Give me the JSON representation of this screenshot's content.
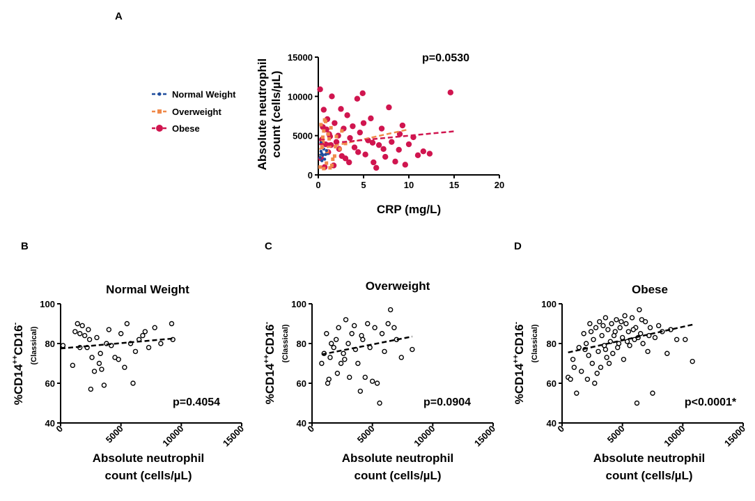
{
  "panels": {
    "A": {
      "label": "A",
      "chart_data": {
        "type": "scatter",
        "title": "",
        "xlabel": "CRP (mg/L)",
        "ylabel_line1": "Absolute neutrophil",
        "ylabel_line2": "count (cells/µL)",
        "xlim": [
          0,
          20
        ],
        "ylim": [
          0,
          15000
        ],
        "xticks": [
          "0",
          "5",
          "10",
          "15",
          "20"
        ],
        "yticks": [
          "0",
          "5000",
          "10000",
          "15000"
        ],
        "annotation": "p=0.0530",
        "series": [
          {
            "name": "Normal Weight",
            "color": "#1f4e9e",
            "marker": "circle-small",
            "points": [
              [
                0.2,
                2200
              ],
              [
                0.3,
                3000
              ],
              [
                0.5,
                2500
              ],
              [
                0.4,
                1800
              ],
              [
                0.6,
                3300
              ],
              [
                0.8,
                2600
              ],
              [
                0.3,
                4100
              ],
              [
                0.7,
                2000
              ],
              [
                0.9,
                3100
              ],
              [
                0.4,
                2700
              ]
            ],
            "fit": [
              [
                0.1,
                2550
              ],
              [
                1.2,
                2650
              ]
            ]
          },
          {
            "name": "Overweight",
            "color": "#f08a4b",
            "marker": "square",
            "points": [
              [
                0.2,
                1000
              ],
              [
                0.3,
                2500
              ],
              [
                0.5,
                4200
              ],
              [
                0.6,
                5600
              ],
              [
                0.8,
                6800
              ],
              [
                1.0,
                3000
              ],
              [
                1.2,
                4600
              ],
              [
                1.4,
                6000
              ],
              [
                1.6,
                2000
              ],
              [
                0.4,
                3600
              ],
              [
                0.9,
                1500
              ],
              [
                1.1,
                5200
              ],
              [
                0.7,
                7000
              ],
              [
                2.0,
                4900
              ],
              [
                2.4,
                3300
              ],
              [
                3.0,
                4000
              ],
              [
                0.3,
                6400
              ],
              [
                1.8,
                2400
              ],
              [
                0.6,
                800
              ],
              [
                1.3,
                900
              ],
              [
                2.6,
                5600
              ],
              [
                0.5,
                4800
              ],
              [
                1.9,
                3600
              ],
              [
                1.5,
                1200
              ]
            ],
            "fit": [
              [
                0.1,
                3300
              ],
              [
                10.0,
                5800
              ]
            ]
          },
          {
            "name": "Obese",
            "color": "#d0154f",
            "marker": "circle",
            "points": [
              [
                0.2,
                10900
              ],
              [
                0.3,
                2100
              ],
              [
                0.5,
                6100
              ],
              [
                0.6,
                8300
              ],
              [
                0.8,
                3900
              ],
              [
                1.0,
                7100
              ],
              [
                1.2,
                5200
              ],
              [
                1.5,
                10000
              ],
              [
                1.8,
                6600
              ],
              [
                2.0,
                4200
              ],
              [
                2.3,
                3300
              ],
              [
                2.5,
                8400
              ],
              [
                2.8,
                5900
              ],
              [
                3.0,
                2100
              ],
              [
                3.2,
                7600
              ],
              [
                3.5,
                4700
              ],
              [
                3.8,
                6200
              ],
              [
                4.0,
                3500
              ],
              [
                4.3,
                9700
              ],
              [
                4.6,
                5400
              ],
              [
                4.9,
                10400
              ],
              [
                5.2,
                2600
              ],
              [
                5.5,
                4400
              ],
              [
                5.8,
                7200
              ],
              [
                6.1,
                1600
              ],
              [
                6.4,
                900
              ],
              [
                6.7,
                3800
              ],
              [
                7.0,
                5900
              ],
              [
                7.4,
                2300
              ],
              [
                7.8,
                8600
              ],
              [
                8.1,
                4200
              ],
              [
                8.5,
                1700
              ],
              [
                8.9,
                3200
              ],
              [
                9.3,
                6300
              ],
              [
                9.6,
                1300
              ],
              [
                10.0,
                3900
              ],
              [
                10.5,
                4800
              ],
              [
                11.0,
                2500
              ],
              [
                11.6,
                3000
              ],
              [
                12.3,
                2700
              ],
              [
                14.6,
                10500
              ],
              [
                0.4,
                4500
              ],
              [
                0.7,
                1000
              ],
              [
                1.1,
                2900
              ],
              [
                1.4,
                3800
              ],
              [
                1.7,
                1200
              ],
              [
                2.2,
                5000
              ],
              [
                3.4,
                1600
              ],
              [
                4.4,
                2900
              ],
              [
                5.0,
                6600
              ],
              [
                6.0,
                4100
              ],
              [
                7.2,
                3300
              ],
              [
                9.0,
                5200
              ],
              [
                0.9,
                5800
              ],
              [
                1.3,
                4900
              ],
              [
                2.6,
                2400
              ]
            ],
            "fit": [
              [
                0.1,
                3900
              ],
              [
                15.0,
                5550
              ]
            ]
          }
        ]
      }
    },
    "B": {
      "label": "B",
      "chart_data": {
        "type": "scatter",
        "title": "Normal Weight",
        "xlabel_line1": "Absolute neutrophil",
        "xlabel_line2": "count (cells/µL)",
        "ylabel_main": "%CD14",
        "ylabel_sup1": "++",
        "ylabel_mid": "CD16",
        "ylabel_sup2": "-",
        "ylabel_sub": "(Classical)",
        "xlim": [
          0,
          15000
        ],
        "ylim": [
          40,
          100
        ],
        "xticks": [
          "0",
          "5000",
          "10000",
          "15000"
        ],
        "yticks": [
          "40",
          "60",
          "80",
          "100"
        ],
        "annotation": "p=0.4054",
        "points": [
          [
            200,
            79
          ],
          [
            1000,
            69
          ],
          [
            1200,
            86
          ],
          [
            1400,
            90
          ],
          [
            1600,
            85
          ],
          [
            1800,
            89
          ],
          [
            2000,
            84
          ],
          [
            2200,
            78
          ],
          [
            2300,
            87
          ],
          [
            2500,
            57
          ],
          [
            2600,
            73
          ],
          [
            2800,
            66
          ],
          [
            3000,
            83
          ],
          [
            3200,
            70
          ],
          [
            3400,
            67
          ],
          [
            3600,
            59
          ],
          [
            3800,
            80
          ],
          [
            4000,
            87
          ],
          [
            4200,
            79
          ],
          [
            4500,
            73
          ],
          [
            4800,
            72
          ],
          [
            5000,
            85
          ],
          [
            5300,
            68
          ],
          [
            5500,
            90
          ],
          [
            5800,
            80
          ],
          [
            6000,
            60
          ],
          [
            6200,
            76
          ],
          [
            6500,
            82
          ],
          [
            6800,
            84
          ],
          [
            7000,
            86
          ],
          [
            7300,
            78
          ],
          [
            7800,
            88
          ],
          [
            8300,
            80
          ],
          [
            9200,
            90
          ],
          [
            9300,
            82
          ],
          [
            2400,
            82
          ],
          [
            3300,
            75
          ],
          [
            1600,
            78
          ]
        ],
        "fit": [
          [
            0,
            77.5
          ],
          [
            9300,
            82.5
          ]
        ]
      }
    },
    "C": {
      "label": "C",
      "chart_data": {
        "type": "scatter",
        "title": "Overweight",
        "xlabel_line1": "Absolute neutrophil",
        "xlabel_line2": "count (cells/µL)",
        "ylabel_main": "%CD14",
        "ylabel_sup1": "++",
        "ylabel_mid": "CD16",
        "ylabel_sup2": "-",
        "ylabel_sub": "(Classical)",
        "xlim": [
          0,
          15000
        ],
        "ylim": [
          40,
          100
        ],
        "xticks": [
          "0",
          "5000",
          "10000",
          "15000"
        ],
        "yticks": [
          "40",
          "60",
          "80",
          "100"
        ],
        "annotation": "p=0.0904",
        "points": [
          [
            800,
            70
          ],
          [
            1000,
            75
          ],
          [
            1200,
            85
          ],
          [
            1300,
            60
          ],
          [
            1500,
            73
          ],
          [
            1600,
            80
          ],
          [
            1800,
            78
          ],
          [
            2000,
            82
          ],
          [
            2100,
            65
          ],
          [
            2200,
            88
          ],
          [
            2400,
            70
          ],
          [
            2600,
            75
          ],
          [
            2800,
            92
          ],
          [
            3000,
            80
          ],
          [
            3100,
            63
          ],
          [
            3300,
            85
          ],
          [
            3500,
            89
          ],
          [
            3600,
            77
          ],
          [
            3800,
            70
          ],
          [
            4000,
            56
          ],
          [
            4200,
            82
          ],
          [
            4400,
            63
          ],
          [
            4600,
            90
          ],
          [
            4800,
            78
          ],
          [
            5000,
            61
          ],
          [
            5200,
            88
          ],
          [
            5400,
            60
          ],
          [
            5600,
            50
          ],
          [
            5800,
            85
          ],
          [
            6000,
            76
          ],
          [
            6300,
            90
          ],
          [
            6500,
            97
          ],
          [
            6800,
            88
          ],
          [
            7000,
            82
          ],
          [
            7400,
            73
          ],
          [
            8300,
            77
          ],
          [
            1400,
            62
          ],
          [
            2700,
            72
          ],
          [
            4100,
            84
          ]
        ],
        "fit": [
          [
            800,
            74.5
          ],
          [
            8300,
            83.5
          ]
        ]
      }
    },
    "D": {
      "label": "D",
      "chart_data": {
        "type": "scatter",
        "title": "Obese",
        "xlabel_line1": "Absolute neutrophil",
        "xlabel_line2": "count (cells/µL)",
        "ylabel_main": "%CD14",
        "ylabel_sup1": "++",
        "ylabel_mid": "CD16",
        "ylabel_sup2": "-",
        "ylabel_sub": "(Classical)",
        "xlim": [
          0,
          15000
        ],
        "ylim": [
          40,
          100
        ],
        "xticks": [
          "0",
          "5000",
          "10000",
          "15000"
        ],
        "yticks": [
          "40",
          "60",
          "80",
          "100"
        ],
        "annotation": "p<0.0001*",
        "points": [
          [
            500,
            63
          ],
          [
            700,
            62
          ],
          [
            900,
            72
          ],
          [
            1200,
            55
          ],
          [
            1400,
            78
          ],
          [
            1600,
            66
          ],
          [
            1800,
            85
          ],
          [
            2000,
            80
          ],
          [
            2200,
            74
          ],
          [
            2300,
            90
          ],
          [
            2500,
            70
          ],
          [
            2600,
            82
          ],
          [
            2700,
            60
          ],
          [
            2800,
            88
          ],
          [
            3000,
            76
          ],
          [
            3100,
            91
          ],
          [
            3200,
            68
          ],
          [
            3300,
            84
          ],
          [
            3500,
            79
          ],
          [
            3600,
            93
          ],
          [
            3700,
            73
          ],
          [
            3800,
            87
          ],
          [
            4000,
            81
          ],
          [
            4100,
            90
          ],
          [
            4200,
            75
          ],
          [
            4300,
            84
          ],
          [
            4500,
            92
          ],
          [
            4600,
            78
          ],
          [
            4800,
            88
          ],
          [
            5000,
            83
          ],
          [
            5100,
            72
          ],
          [
            5300,
            90
          ],
          [
            5500,
            86
          ],
          [
            5600,
            79
          ],
          [
            5800,
            93
          ],
          [
            6000,
            82
          ],
          [
            6100,
            88
          ],
          [
            6200,
            50
          ],
          [
            6400,
            97
          ],
          [
            6500,
            85
          ],
          [
            6700,
            80
          ],
          [
            6900,
            91
          ],
          [
            7100,
            76
          ],
          [
            7300,
            88
          ],
          [
            7500,
            55
          ],
          [
            7700,
            83
          ],
          [
            8000,
            89
          ],
          [
            8300,
            86
          ],
          [
            8700,
            75
          ],
          [
            9000,
            87
          ],
          [
            9500,
            82
          ],
          [
            10200,
            82
          ],
          [
            10800,
            71
          ],
          [
            1900,
            77
          ],
          [
            2400,
            86
          ],
          [
            2900,
            65
          ],
          [
            3400,
            89
          ],
          [
            3900,
            70
          ],
          [
            4400,
            86
          ],
          [
            4900,
            91
          ],
          [
            5400,
            81
          ],
          [
            5900,
            87
          ],
          [
            6600,
            92
          ],
          [
            7200,
            84
          ],
          [
            2100,
            62
          ],
          [
            3600,
            77
          ],
          [
            4700,
            80
          ],
          [
            5200,
            94
          ],
          [
            6300,
            83
          ],
          [
            1000,
            68
          ]
        ],
        "fit": [
          [
            500,
            75.5
          ],
          [
            10800,
            89.5
          ]
        ]
      }
    }
  }
}
